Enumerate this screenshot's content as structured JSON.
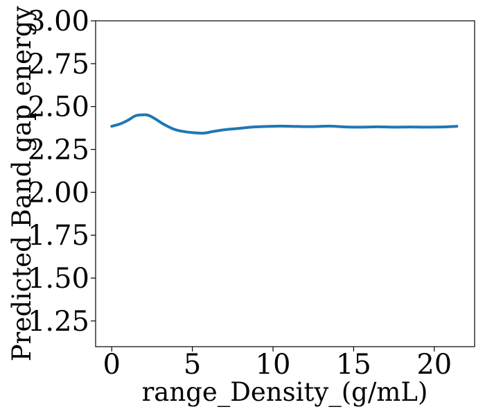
{
  "chart_data": {
    "type": "line",
    "title": "",
    "xlabel": "range_Density_(g/mL)",
    "ylabel": "Predicted Band gap energy",
    "xlim": [
      -1.0,
      22.5
    ],
    "ylim": [
      1.1,
      3.0
    ],
    "xticks": [
      0,
      5,
      10,
      15,
      20
    ],
    "xtick_labels": [
      "0",
      "5",
      "10",
      "15",
      "20"
    ],
    "yticks": [
      1.25,
      1.5,
      1.75,
      2.0,
      2.25,
      2.5,
      2.75,
      3.0
    ],
    "ytick_labels": [
      "1.25",
      "1.50",
      "1.75",
      "2.00",
      "2.25",
      "2.50",
      "2.75",
      "3.00"
    ],
    "grid": false,
    "series": [
      {
        "color": "#1f77b4",
        "x": [
          0.0,
          0.5,
          1.0,
          1.5,
          2.0,
          2.3,
          2.7,
          3.2,
          3.8,
          4.3,
          5.0,
          5.7,
          6.3,
          7.0,
          7.8,
          8.8,
          10.0,
          10.5,
          11.5,
          12.5,
          13.5,
          14.5,
          15.5,
          16.5,
          17.5,
          18.5,
          19.5,
          20.5,
          21.4
        ],
        "y": [
          2.385,
          2.398,
          2.42,
          2.447,
          2.452,
          2.448,
          2.428,
          2.398,
          2.37,
          2.357,
          2.348,
          2.345,
          2.355,
          2.365,
          2.372,
          2.381,
          2.385,
          2.386,
          2.384,
          2.383,
          2.386,
          2.381,
          2.38,
          2.382,
          2.38,
          2.381,
          2.38,
          2.381,
          2.385
        ]
      }
    ]
  }
}
